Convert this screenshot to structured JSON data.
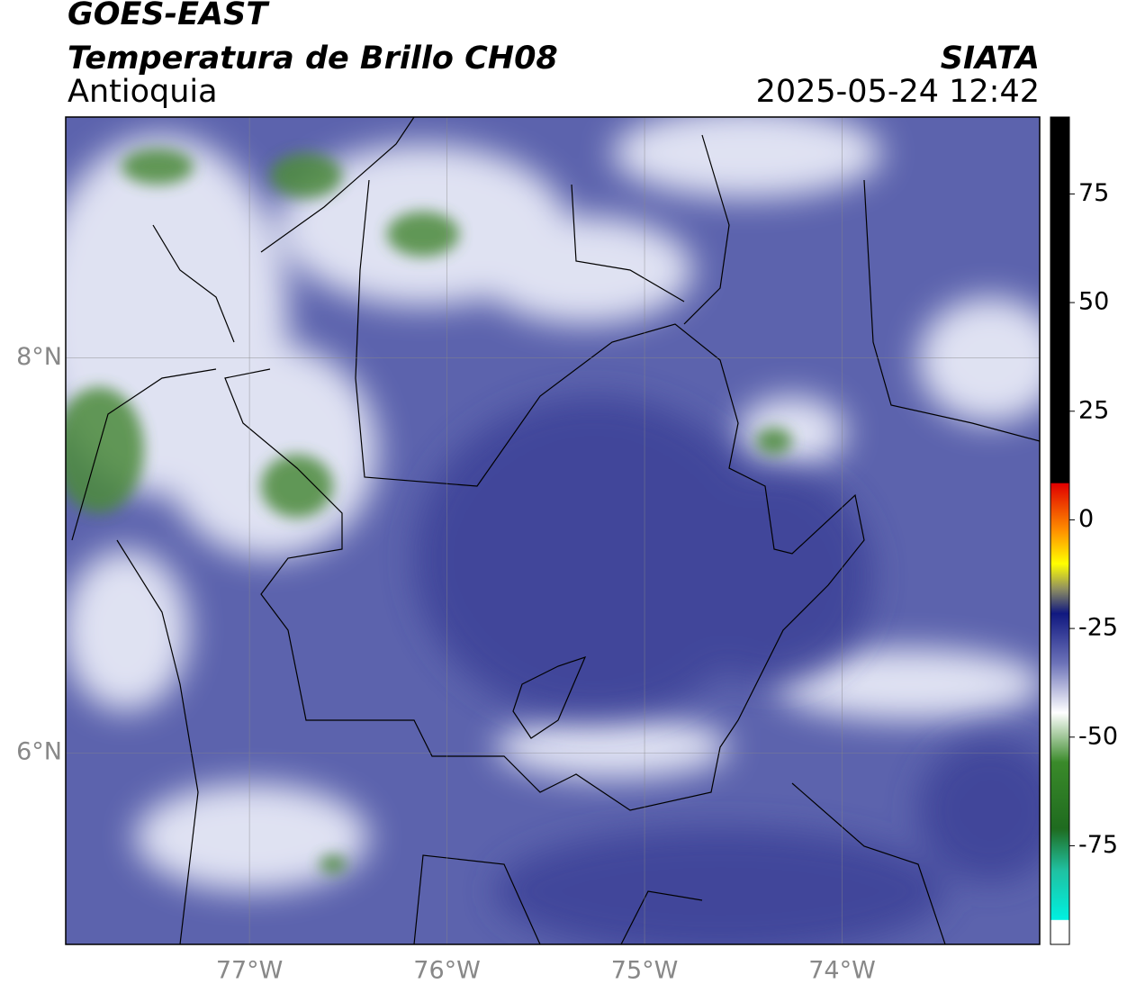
{
  "header": {
    "title": "GOES-EAST",
    "subtitle": "Temperatura de Brillo CH08",
    "source": "SIATA",
    "region": "Antioquia",
    "datetime": "2025-05-24 12:42"
  },
  "map": {
    "xlim": [
      -77.93,
      -73.0
    ],
    "ylim": [
      5.03,
      9.22
    ],
    "xticks": [
      {
        "value": -77,
        "label": "77°W"
      },
      {
        "value": -76,
        "label": "76°W"
      },
      {
        "value": -75,
        "label": "75°W"
      },
      {
        "value": -74,
        "label": "74°W"
      }
    ],
    "yticks": [
      {
        "value": 8,
        "label": "8°N"
      },
      {
        "value": 6,
        "label": "6°N"
      }
    ]
  },
  "colorbar": {
    "lim": [
      -97.7,
      92.7
    ],
    "ticks": [
      75,
      50,
      25,
      0,
      -25,
      -50,
      -75
    ]
  }
}
